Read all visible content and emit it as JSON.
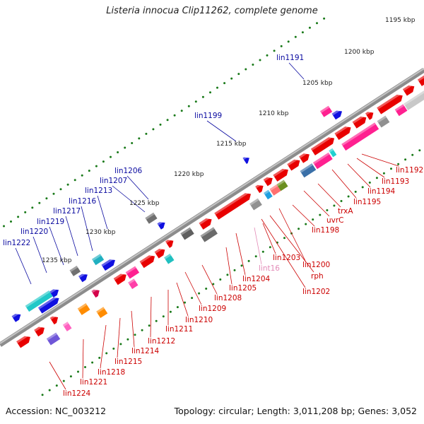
{
  "title": "Listeria innocua Clip11262, complete genome",
  "accession": "Accession: NC_003212",
  "summary": "Topology: circular; Length: 3,011,208 bp; Genes: 3,052",
  "colors": {
    "backbone": "#8c8c8c",
    "ticks": "#1a7a1a",
    "label_upper": "#0a0aa0",
    "label_lower": "#cc0000",
    "label_rna": "#e38bb8"
  },
  "kbp_labels": [
    {
      "text": "1195 kbp"
    },
    {
      "text": "1200 kbp"
    },
    {
      "text": "1205 kbp"
    },
    {
      "text": "1210 kbp"
    },
    {
      "text": "1215 kbp"
    },
    {
      "text": "1220 kbp"
    },
    {
      "text": "1225 kbp"
    },
    {
      "text": "1230 kbp"
    },
    {
      "text": "1235 kbp"
    }
  ],
  "upper_labels": [
    "lin1191",
    "lin1199",
    "lin1206",
    "lin1207",
    "lin1213",
    "lin1216",
    "lin1217",
    "lin1219",
    "lin1220",
    "lin1222"
  ],
  "lower_labels": [
    "lin1192",
    "lin1193",
    "lin1194",
    "lin1195",
    "trxA",
    "uvrC",
    "lin1198",
    "lin1200",
    "rph",
    "lin1202",
    "lin1203",
    "lint16",
    "lin1204",
    "lin1205",
    "lin1208",
    "lin1209",
    "lin1210",
    "lin1211",
    "lin1212",
    "lin1214",
    "lin1215",
    "lin1218",
    "lin1221",
    "lin1224"
  ]
}
